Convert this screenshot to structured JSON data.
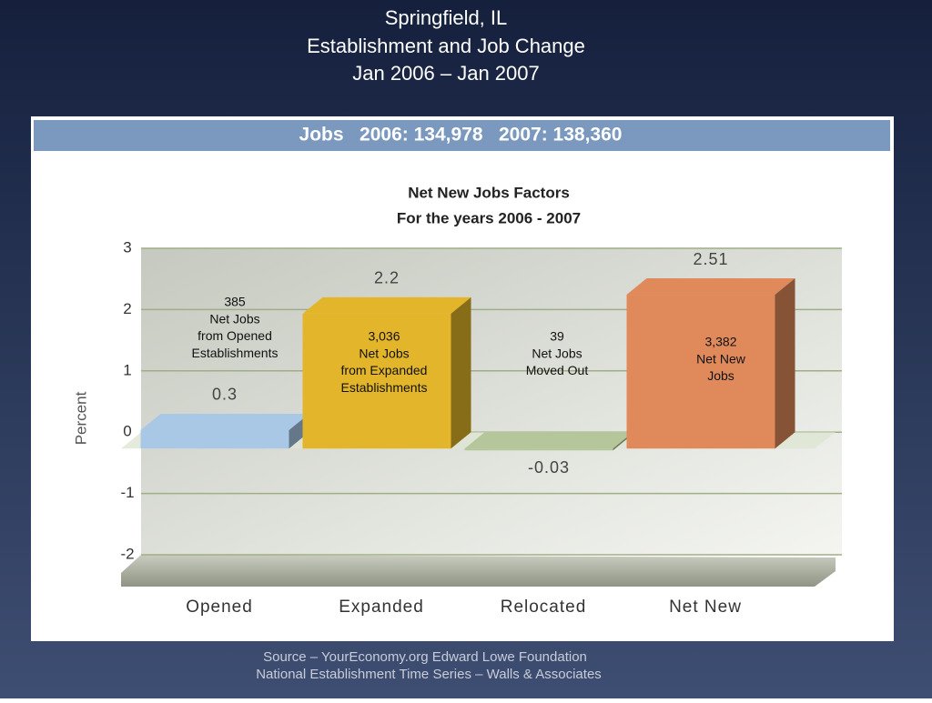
{
  "slide_title": [
    "Springfield, IL",
    "Establishment and Job Change",
    "Jan 2006 – Jan 2007"
  ],
  "header": "Jobs   2006: 134,978   2007: 138,360",
  "chart_data": {
    "type": "bar",
    "title": [
      "Net New Jobs Factors",
      "For the years 2006 - 2007"
    ],
    "ylabel": "Percent",
    "categories": [
      "Opened",
      "Expanded",
      "Relocated",
      "Net New"
    ],
    "values": [
      0.3,
      2.2,
      -0.03,
      2.51
    ],
    "colors": [
      "#a9c8e6",
      "#e3b52a",
      "#b5c79a",
      "#e08a5c"
    ],
    "ylim": [
      -2,
      3
    ],
    "yticks": [
      -2,
      -1,
      0,
      1,
      2,
      3
    ],
    "grid": true,
    "annotations": [
      [
        "385",
        "Net Jobs",
        "from Opened",
        "Establishments"
      ],
      [
        "3,036",
        "Net Jobs",
        "from Expanded",
        "Establishments"
      ],
      [
        "39",
        "Net Jobs",
        "Moved Out"
      ],
      [
        "3,382",
        "Net New",
        "Jobs"
      ]
    ]
  },
  "source": [
    "Source – YourEconomy.org Edward Lowe Foundation",
    "National Establishment Time Series – Walls & Associates"
  ]
}
